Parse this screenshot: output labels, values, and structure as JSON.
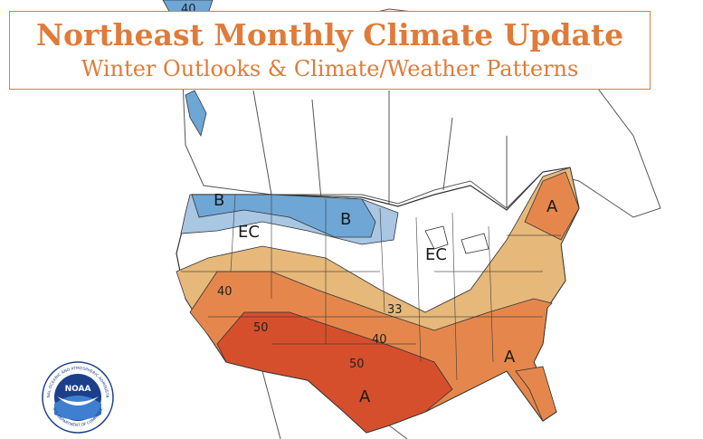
{
  "header": {
    "title": "Northeast Monthly Climate Update",
    "subtitle": "Winter Outlooks & Climate/Weather Patterns"
  },
  "map": {
    "category_labels": {
      "below_west": "B",
      "below_north": "B",
      "ec_west": "EC",
      "ec_central": "EC",
      "above_northeast": "A",
      "above_southeast": "A",
      "above_south": "A"
    },
    "contour_labels": {
      "c40_west": "40",
      "c50_west": "50",
      "c33_central": "33",
      "c40_central": "40",
      "c50_south": "50",
      "c40_top": "40"
    },
    "colors": {
      "below_light": "#a9c6e3",
      "below_mid": "#6ea7d6",
      "above_33": "#e6b87a",
      "above_40": "#e5874c",
      "above_50": "#d64f2d",
      "above_60": "#c8392a",
      "border": "#333333",
      "accent": "#e07b39"
    }
  },
  "logo": {
    "text": "NOAA",
    "ring_top": "NATIONAL OCEANIC AND ATMOSPHERIC ADMINISTRATION",
    "ring_bottom": "U.S. DEPARTMENT OF COMMERCE"
  }
}
